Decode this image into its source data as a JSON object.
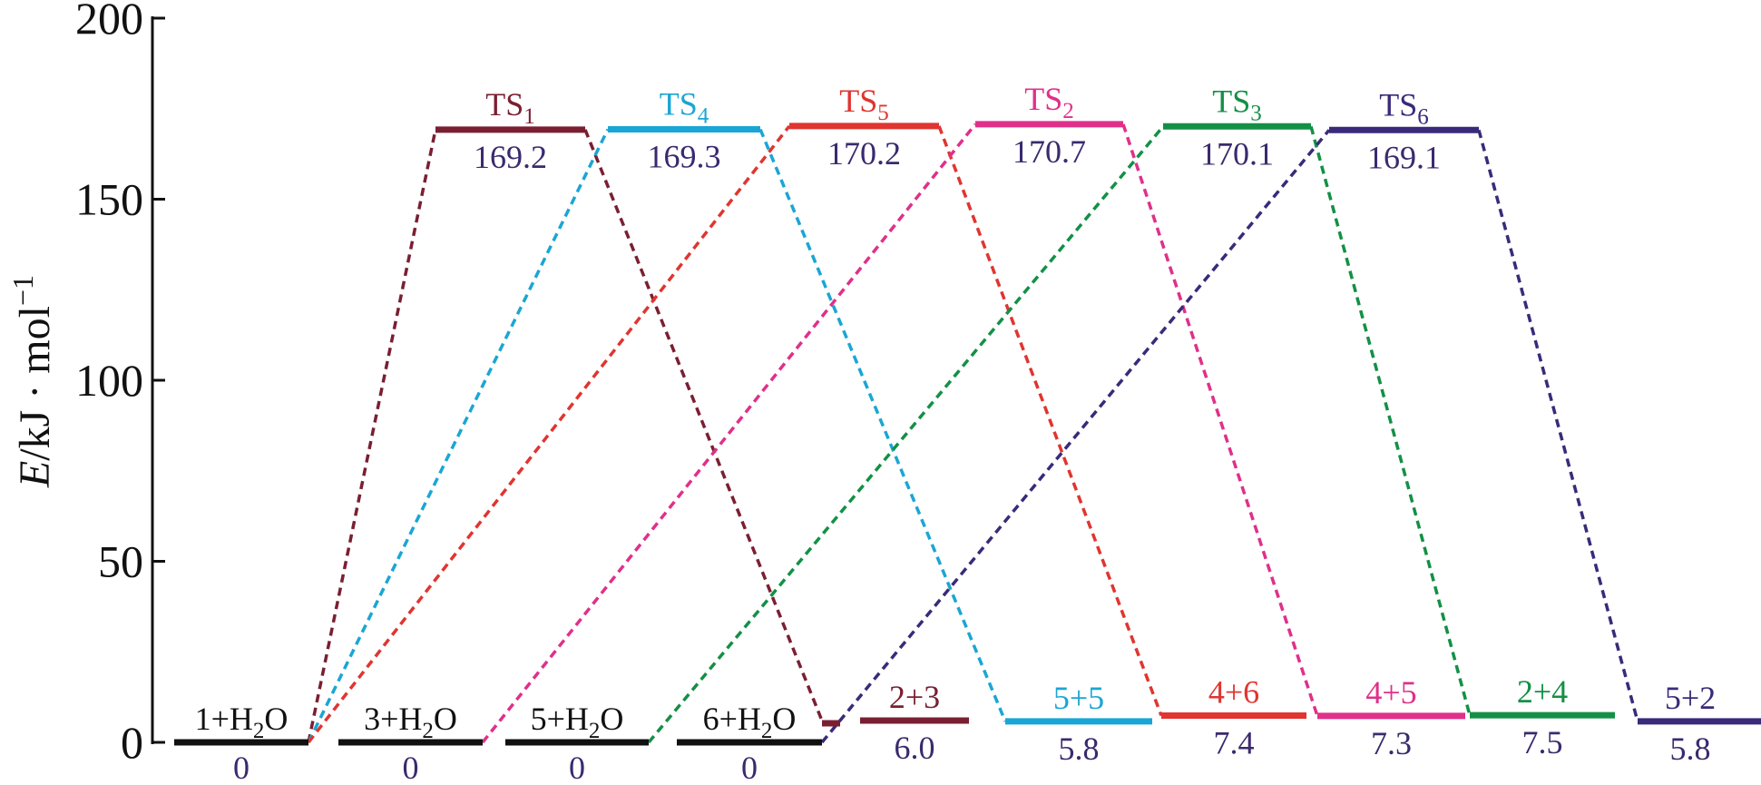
{
  "chart_data": {
    "type": "energy_profile",
    "ylabel": "E/kJ·mol⁻¹",
    "ylabel_parts": {
      "var": "E",
      "unit": "/kJ · mol",
      "sup": "−1"
    },
    "ylim": [
      0,
      200
    ],
    "yticks": [
      "0",
      "50",
      "100",
      "150",
      "200"
    ],
    "colors": {
      "axis": "#111111",
      "reactant": "#111111",
      "value_text": "#3a2a6e",
      "TS1": "#7a1f32",
      "TS4": "#1aa6d4",
      "TS5": "#e03530",
      "TS2": "#e0308a",
      "TS3": "#139046",
      "TS6": "#3a2a7a"
    },
    "reactants": [
      {
        "id": "R1",
        "label": "1+H",
        "sub": "2",
        "post": "O",
        "value_text": "0",
        "energy": 0
      },
      {
        "id": "R3",
        "label": "3+H",
        "sub": "2",
        "post": "O",
        "value_text": "0",
        "energy": 0
      },
      {
        "id": "R5",
        "label": "5+H",
        "sub": "2",
        "post": "O",
        "value_text": "0",
        "energy": 0
      },
      {
        "id": "R6",
        "label": "6+H",
        "sub": "2",
        "post": "O",
        "value_text": "0",
        "energy": 0
      }
    ],
    "transition_states": [
      {
        "id": "TS1",
        "label": "TS",
        "sub": "1",
        "value_text": "169.2",
        "energy": 169.2
      },
      {
        "id": "TS4",
        "label": "TS",
        "sub": "4",
        "value_text": "169.3",
        "energy": 169.3
      },
      {
        "id": "TS5",
        "label": "TS",
        "sub": "5",
        "value_text": "170.2",
        "energy": 170.2
      },
      {
        "id": "TS2",
        "label": "TS",
        "sub": "2",
        "value_text": "170.7",
        "energy": 170.7
      },
      {
        "id": "TS3",
        "label": "TS",
        "sub": "3",
        "value_text": "170.1",
        "energy": 170.1
      },
      {
        "id": "TS6",
        "label": "TS",
        "sub": "6",
        "value_text": "169.1",
        "energy": 169.1
      }
    ],
    "products": [
      {
        "id": "P23",
        "label": "2+3",
        "value_text": "6.0",
        "energy": 6.0,
        "color_key": "TS1"
      },
      {
        "id": "P55",
        "label": "5+5",
        "value_text": "5.8",
        "energy": 5.8,
        "color_key": "TS4"
      },
      {
        "id": "P46",
        "label": "4+6",
        "value_text": "7.4",
        "energy": 7.4,
        "color_key": "TS5"
      },
      {
        "id": "P45",
        "label": "4+5",
        "value_text": "7.3",
        "energy": 7.3,
        "color_key": "TS2"
      },
      {
        "id": "P24",
        "label": "2+4",
        "value_text": "7.5",
        "energy": 7.5,
        "color_key": "TS3"
      },
      {
        "id": "P52",
        "label": "5+2",
        "value_text": "5.8",
        "energy": 5.8,
        "color_key": "TS6"
      }
    ],
    "pathways": [
      {
        "ts": "TS1",
        "reactant": "R1",
        "product": "P23"
      },
      {
        "ts": "TS4",
        "reactant": "R1",
        "product": "P55"
      },
      {
        "ts": "TS5",
        "reactant": "R1",
        "product": "P46"
      },
      {
        "ts": "TS2",
        "reactant": "R3",
        "product": "P45"
      },
      {
        "ts": "TS3",
        "reactant": "R5",
        "product": "P24"
      },
      {
        "ts": "TS6",
        "reactant": "R6",
        "product": "P52"
      }
    ]
  }
}
